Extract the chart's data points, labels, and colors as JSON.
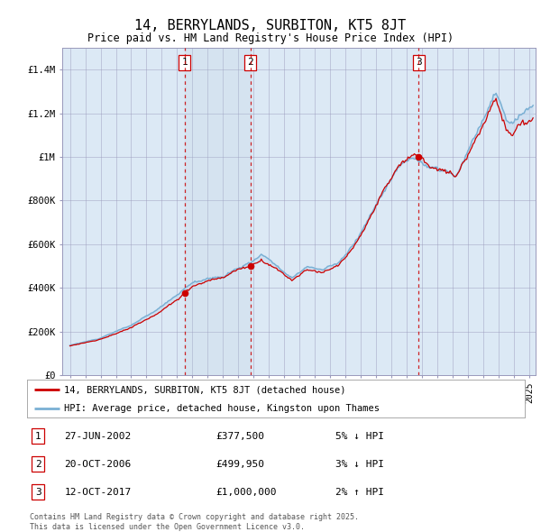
{
  "title": "14, BERRYLANDS, SURBITON, KT5 8JT",
  "subtitle": "Price paid vs. HM Land Registry's House Price Index (HPI)",
  "ylabel_ticks": [
    "£0",
    "£200K",
    "£400K",
    "£600K",
    "£800K",
    "£1M",
    "£1.2M",
    "£1.4M"
  ],
  "ytick_vals": [
    0,
    200000,
    400000,
    600000,
    800000,
    1000000,
    1200000,
    1400000
  ],
  "ylim": [
    0,
    1500000
  ],
  "sale_dates_str": [
    "27-JUN-2002",
    "20-OCT-2006",
    "12-OCT-2017"
  ],
  "sale_prices": [
    377500,
    499950,
    1000000
  ],
  "sale_labels": [
    "1",
    "2",
    "3"
  ],
  "sale_pct": [
    "5% ↓ HPI",
    "3% ↓ HPI",
    "2% ↑ HPI"
  ],
  "legend_line1": "14, BERRYLANDS, SURBITON, KT5 8JT (detached house)",
  "legend_line2": "HPI: Average price, detached house, Kingston upon Thames",
  "footer1": "Contains HM Land Registry data © Crown copyright and database right 2025.",
  "footer2": "This data is licensed under the Open Government Licence v3.0.",
  "line_color_red": "#cc0000",
  "line_color_blue": "#7ab0d4",
  "sale_dot_color": "#cc0000",
  "vline_color": "#cc0000",
  "bg_color": "#dce9f5",
  "shade_color": "#c5d9ee",
  "grid_color": "#9999bb",
  "box_color": "#cc0000",
  "x_start_year": 1995,
  "x_end_year": 2025
}
